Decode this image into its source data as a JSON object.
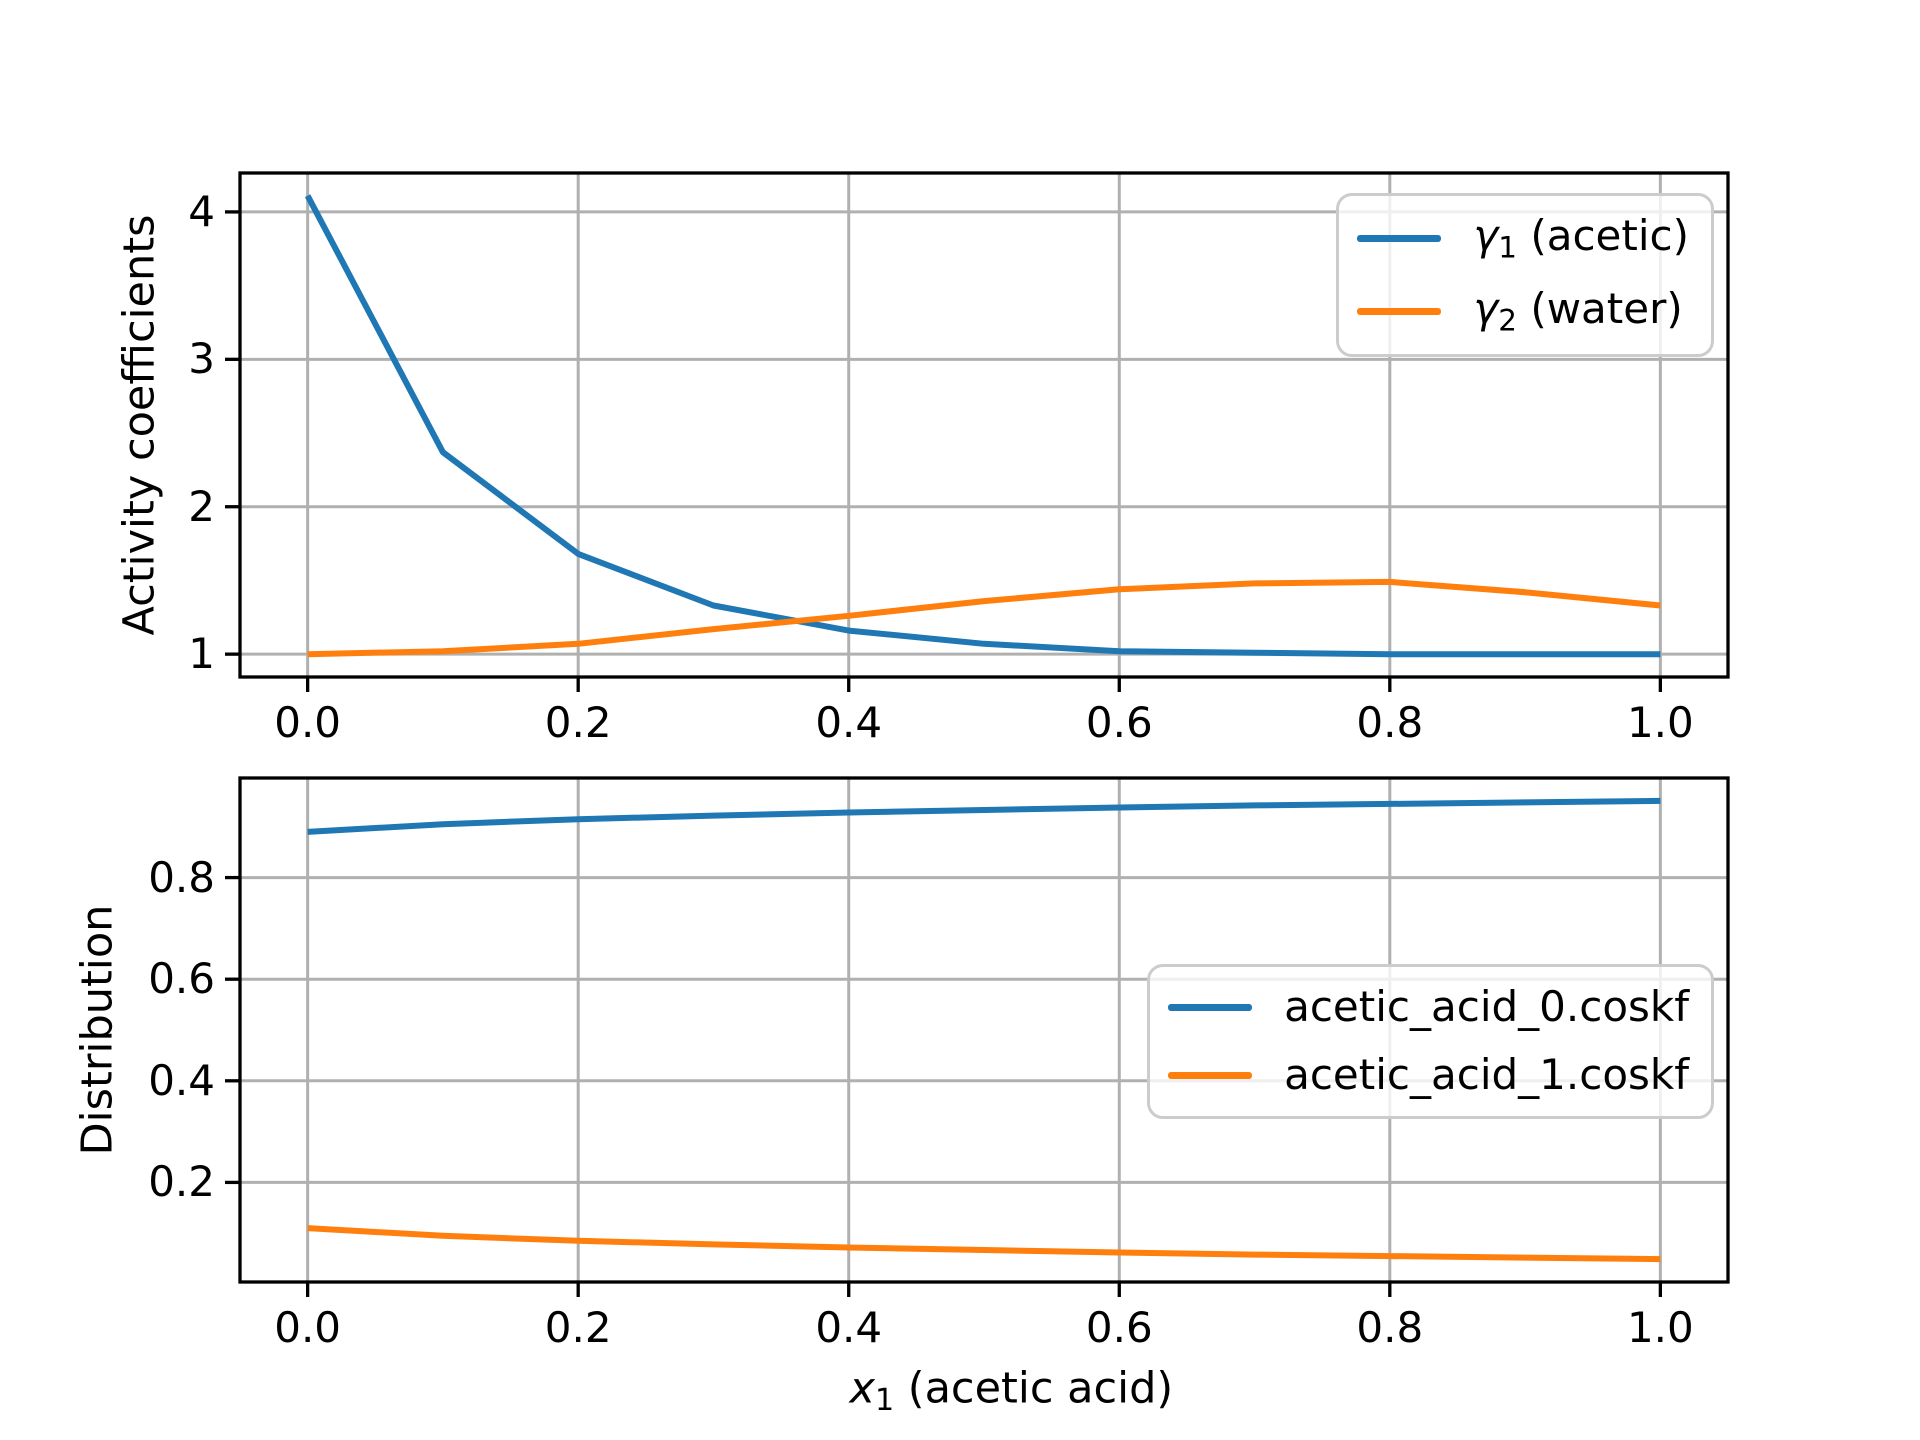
{
  "figure": {
    "background": "#ffffff",
    "grid_color": "#b0b0b0",
    "spine_color": "#000000",
    "tick_color": "#000000",
    "legend_border_color": "#cccccc",
    "series_colors": {
      "blue": "#1f77b4",
      "orange": "#ff7f0e"
    }
  },
  "chart_data": [
    {
      "name": "activity-coefficients",
      "type": "line",
      "title": "",
      "xlabel": null,
      "ylabel": "Activity coefficients",
      "grid": true,
      "legend_position": "upper-right",
      "x": [
        0.0,
        0.1,
        0.2,
        0.3,
        0.4,
        0.5,
        0.6,
        0.7,
        0.8,
        0.9,
        1.0
      ],
      "series": [
        {
          "name": "gamma1-acetic",
          "color": "#1f77b4",
          "legend": {
            "symbol": "γ",
            "sub": "1",
            "text": " (acetic)"
          },
          "values": [
            4.11,
            2.37,
            1.68,
            1.33,
            1.16,
            1.07,
            1.02,
            1.01,
            1.0,
            1.0,
            1.0
          ]
        },
        {
          "name": "gamma2-water",
          "color": "#ff7f0e",
          "legend": {
            "symbol": "γ",
            "sub": "2",
            "text": " (water)"
          },
          "values": [
            1.0,
            1.02,
            1.07,
            1.17,
            1.26,
            1.36,
            1.44,
            1.48,
            1.49,
            1.42,
            1.33
          ]
        }
      ],
      "xlim": [
        -0.05,
        1.05
      ],
      "ylim": [
        0.845,
        4.264
      ],
      "xticks": {
        "values": [
          0.0,
          0.2,
          0.4,
          0.6,
          0.8,
          1.0
        ],
        "labels": [
          "0.0",
          "0.2",
          "0.4",
          "0.6",
          "0.8",
          "1.0"
        ]
      },
      "yticks": {
        "values": [
          1,
          2,
          3,
          4
        ],
        "labels": [
          "1",
          "2",
          "3",
          "4"
        ]
      }
    },
    {
      "name": "distribution",
      "type": "line",
      "title": "",
      "xlabel": {
        "symbol": "x",
        "sub": "1",
        "text": " (acetic acid)"
      },
      "ylabel": "Distribution",
      "grid": true,
      "legend_position": "center-right",
      "x": [
        0.0,
        0.1,
        0.2,
        0.3,
        0.4,
        0.5,
        0.6,
        0.7,
        0.8,
        0.9,
        1.0
      ],
      "series": [
        {
          "name": "acetic-acid-0-coskf",
          "color": "#1f77b4",
          "legend": {
            "symbol": null,
            "sub": null,
            "text": "acetic_acid_0.coskf"
          },
          "values": [
            0.89,
            0.905,
            0.915,
            0.922,
            0.928,
            0.933,
            0.938,
            0.942,
            0.945,
            0.948,
            0.951
          ]
        },
        {
          "name": "acetic-acid-1-coskf",
          "color": "#ff7f0e",
          "legend": {
            "symbol": null,
            "sub": null,
            "text": "acetic_acid_1.coskf"
          },
          "values": [
            0.11,
            0.095,
            0.085,
            0.078,
            0.072,
            0.067,
            0.062,
            0.058,
            0.055,
            0.052,
            0.049
          ]
        }
      ],
      "xlim": [
        -0.05,
        1.05
      ],
      "ylim": [
        0.004,
        0.996
      ],
      "xticks": {
        "values": [
          0.0,
          0.2,
          0.4,
          0.6,
          0.8,
          1.0
        ],
        "labels": [
          "0.0",
          "0.2",
          "0.4",
          "0.6",
          "0.8",
          "1.0"
        ]
      },
      "yticks": {
        "values": [
          0.2,
          0.4,
          0.6,
          0.8
        ],
        "labels": [
          "0.2",
          "0.4",
          "0.6",
          "0.8"
        ]
      }
    }
  ]
}
